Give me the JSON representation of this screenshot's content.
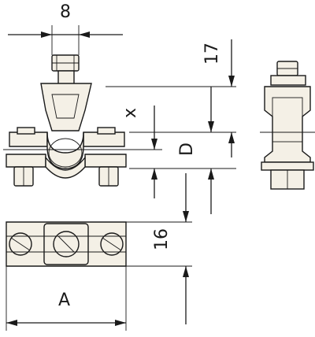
{
  "dimensions": {
    "screw_width": "8",
    "top_offset": "17",
    "x": "x",
    "diameter": "D",
    "slot_height": "16",
    "length": "A"
  },
  "colors": {
    "stroke": "#1a1a1a",
    "part_fill": "#f4f0e6",
    "background": "#ffffff"
  }
}
